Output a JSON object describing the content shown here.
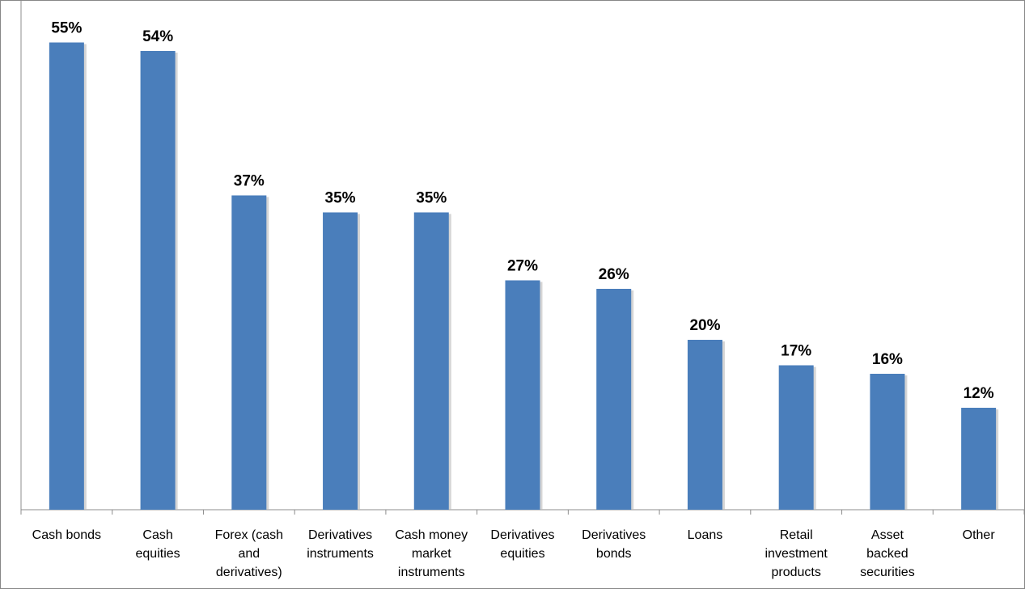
{
  "chart_data": {
    "type": "bar",
    "title": "",
    "xlabel": "",
    "ylabel": "",
    "ylim": [
      0,
      60
    ],
    "grid": false,
    "legend": "none",
    "bar_color": "#4a7ebb",
    "categories": [
      "Cash bonds",
      "Cash equities",
      "Forex (cash and derivatives)",
      "Derivatives instruments",
      "Cash money market instruments",
      "Derivatives equities",
      "Derivatives bonds",
      "Loans",
      "Retail investment products",
      "Asset backed securities",
      "Other"
    ],
    "category_lines": [
      [
        "Cash bonds"
      ],
      [
        "Cash",
        "equities"
      ],
      [
        "Forex (cash",
        "and",
        "derivatives)"
      ],
      [
        "Derivatives",
        "instruments"
      ],
      [
        "Cash money",
        "market",
        "instruments"
      ],
      [
        "Derivatives",
        "equities"
      ],
      [
        "Derivatives",
        "bonds"
      ],
      [
        "Loans"
      ],
      [
        "Retail",
        "investment",
        "products"
      ],
      [
        "Asset",
        "backed",
        "securities"
      ],
      [
        "Other"
      ]
    ],
    "values": [
      55,
      54,
      37,
      35,
      35,
      27,
      26,
      20,
      17,
      16,
      12
    ],
    "data_labels": [
      "55%",
      "54%",
      "37%",
      "35%",
      "35%",
      "27%",
      "26%",
      "20%",
      "17%",
      "16%",
      "12%"
    ]
  }
}
